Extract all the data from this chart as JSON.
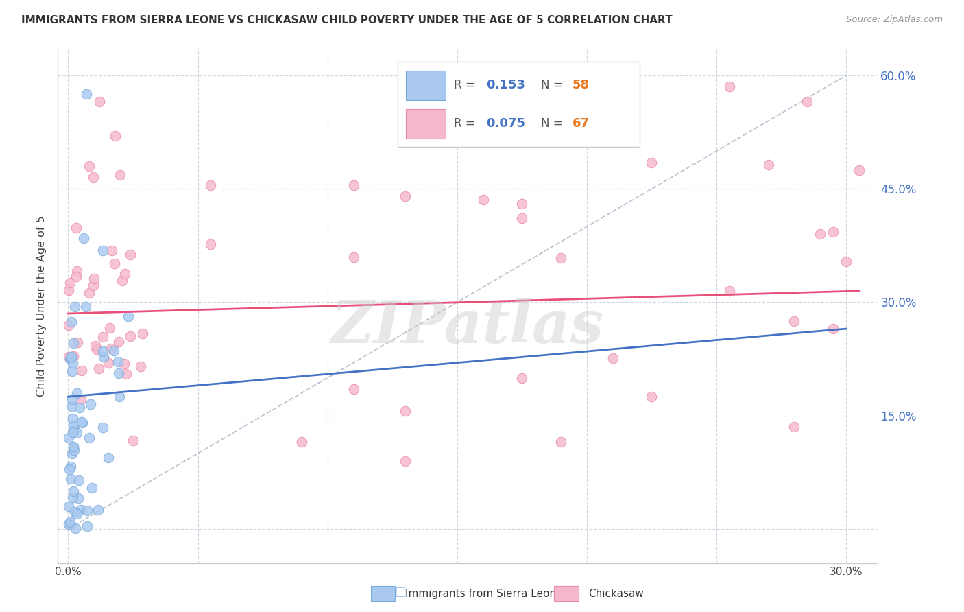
{
  "title": "IMMIGRANTS FROM SIERRA LEONE VS CHICKASAW CHILD POVERTY UNDER THE AGE OF 5 CORRELATION CHART",
  "source": "Source: ZipAtlas.com",
  "ylabel": "Child Poverty Under the Age of 5",
  "series1_label": "Immigrants from Sierra Leone",
  "series1_R": "0.153",
  "series1_N": "58",
  "series1_color": "#a8c8f0",
  "series1_edge_color": "#7aaad8",
  "series2_label": "Chickasaw",
  "series2_R": "0.075",
  "series2_N": "67",
  "series2_color": "#f5b8cb",
  "series2_edge_color": "#e88aa8",
  "trend1_color": "#4472c4",
  "trend2_color": "#e8507a",
  "ref_line_color": "#b0b8c8",
  "watermark": "ZIPatlas",
  "background_color": "#ffffff",
  "legend_R_color": "#4472c4",
  "legend_N_color": "#e87820",
  "title_color": "#333333",
  "source_color": "#999999",
  "right_axis_color": "#4472c4",
  "ylabel_color": "#444444"
}
